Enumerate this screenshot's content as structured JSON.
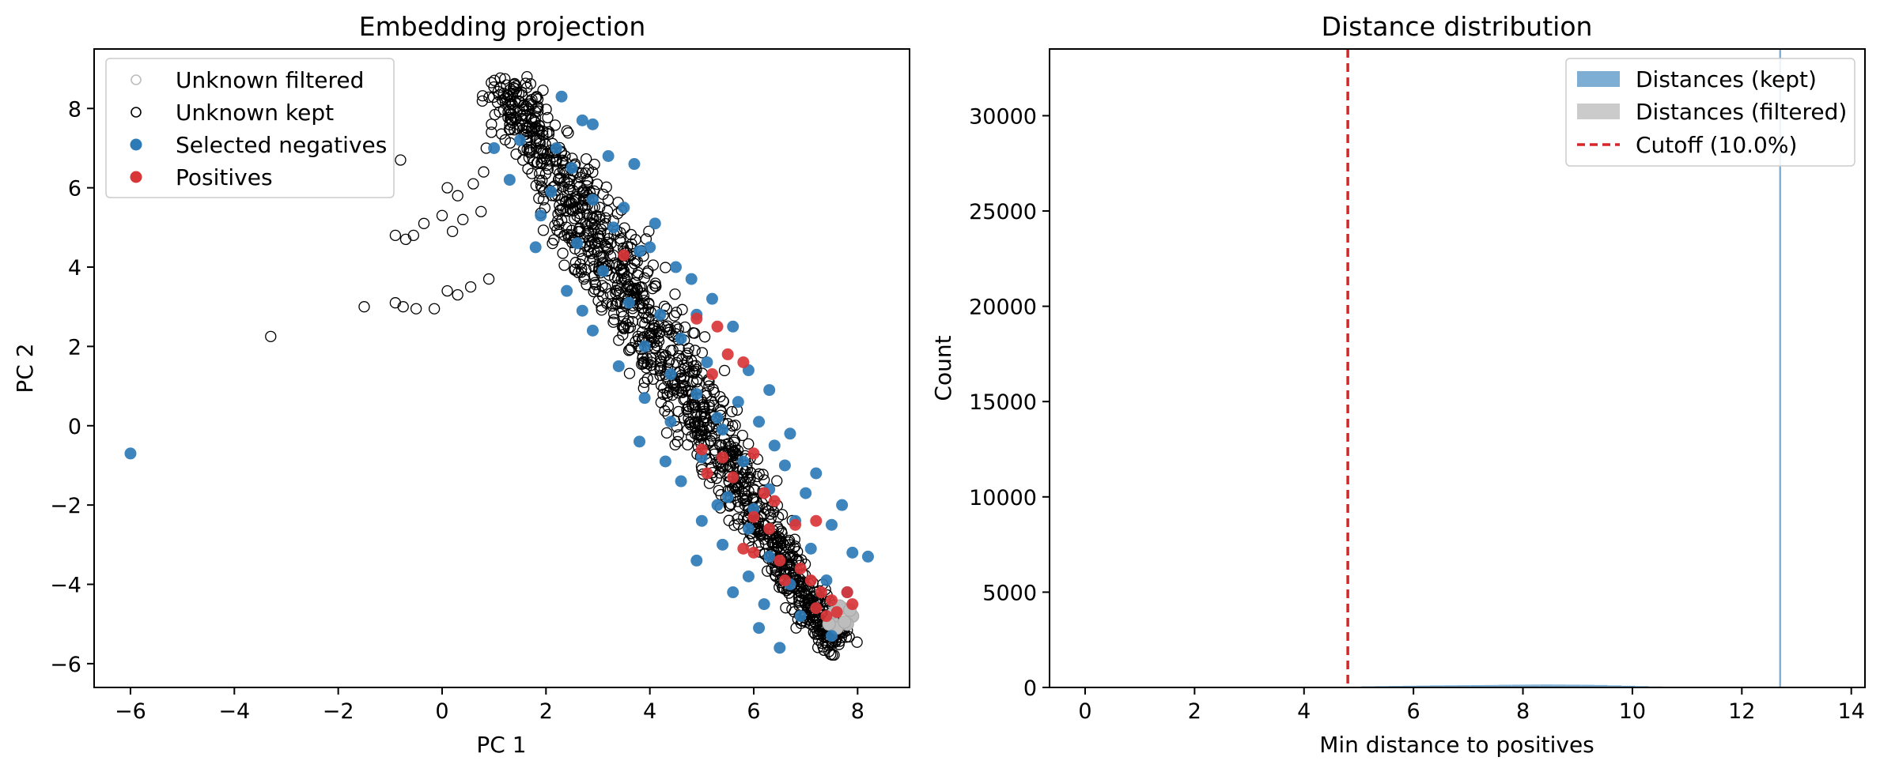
{
  "chart_data": [
    {
      "type": "scatter",
      "title": "Embedding projection",
      "xlabel": "PC 1",
      "ylabel": "PC 2",
      "xlim": [
        -6.7,
        9.0
      ],
      "ylim": [
        -6.6,
        9.5
      ],
      "x_ticks": [
        -6,
        -4,
        -2,
        0,
        2,
        4,
        6,
        8
      ],
      "y_ticks": [
        -6,
        -4,
        -2,
        0,
        2,
        4,
        6,
        8
      ],
      "x_tick_labels": [
        "−6",
        "−4",
        "−2",
        "0",
        "2",
        "4",
        "6",
        "8"
      ],
      "y_tick_labels": [
        "−6",
        "−4",
        "−2",
        "0",
        "2",
        "4",
        "6",
        "8"
      ],
      "legend_position": "top-left",
      "grid": false,
      "colors": {
        "unknown_filtered": "#bdbdbd",
        "unknown_kept": "#000000",
        "selected_negatives": "#1f77b4",
        "positives": "#d62728"
      },
      "series": [
        {
          "name": "Unknown filtered",
          "marker": "hollow-circle",
          "cluster_region": {
            "x_range": [
              7.4,
              8.0
            ],
            "y_range": [
              -5.2,
              -4.4
            ]
          },
          "points": [
            [
              7.5,
              -4.9
            ],
            [
              7.7,
              -4.6
            ],
            [
              7.9,
              -4.8
            ],
            [
              7.6,
              -5.1
            ],
            [
              7.8,
              -5.0
            ],
            [
              7.55,
              -4.7
            ],
            [
              7.75,
              -4.95
            ],
            [
              7.65,
              -4.55
            ],
            [
              7.85,
              -4.65
            ],
            [
              7.45,
              -5.0
            ]
          ]
        },
        {
          "name": "Unknown kept",
          "marker": "hollow-circle",
          "outliers": [
            [
              -3.3,
              2.25
            ],
            [
              -1.5,
              3.0
            ],
            [
              -0.9,
              3.1
            ],
            [
              -0.75,
              3.0
            ],
            [
              -0.5,
              2.95
            ],
            [
              -0.15,
              2.95
            ],
            [
              0.1,
              3.4
            ],
            [
              0.3,
              3.3
            ],
            [
              0.55,
              3.5
            ],
            [
              0.9,
              3.7
            ],
            [
              -0.9,
              4.8
            ],
            [
              -0.7,
              4.7
            ],
            [
              -0.55,
              4.8
            ],
            [
              -0.35,
              5.1
            ],
            [
              0.0,
              5.3
            ],
            [
              0.2,
              4.9
            ],
            [
              0.4,
              5.2
            ],
            [
              0.75,
              5.4
            ],
            [
              -0.8,
              6.7
            ],
            [
              0.1,
              6.0
            ],
            [
              0.3,
              5.8
            ],
            [
              0.6,
              6.1
            ],
            [
              0.8,
              6.4
            ],
            [
              0.95,
              7.4
            ],
            [
              0.85,
              7.0
            ]
          ],
          "cluster_band": {
            "from": [
              1.2,
              8.6
            ],
            "to": [
              7.6,
              -5.6
            ],
            "half_width_pc1": 1.05
          },
          "cluster_count": 1300
        },
        {
          "name": "Selected negatives",
          "marker": "filled-circle",
          "outliers": [
            [
              -6.0,
              -0.7
            ]
          ],
          "points": [
            [
              2.3,
              8.3
            ],
            [
              2.9,
              7.6
            ],
            [
              1.5,
              7.2
            ],
            [
              3.2,
              6.8
            ],
            [
              2.5,
              6.5
            ],
            [
              2.1,
              5.9
            ],
            [
              3.7,
              6.6
            ],
            [
              2.9,
              5.7
            ],
            [
              1.9,
              5.3
            ],
            [
              3.3,
              5.0
            ],
            [
              2.6,
              4.6
            ],
            [
              4.1,
              5.1
            ],
            [
              3.8,
              4.4
            ],
            [
              3.1,
              3.9
            ],
            [
              4.5,
              4.0
            ],
            [
              2.4,
              3.4
            ],
            [
              4.8,
              3.7
            ],
            [
              3.6,
              3.1
            ],
            [
              4.2,
              2.8
            ],
            [
              5.2,
              3.2
            ],
            [
              2.9,
              2.4
            ],
            [
              3.9,
              2.0
            ],
            [
              4.6,
              2.2
            ],
            [
              5.6,
              2.5
            ],
            [
              3.4,
              1.5
            ],
            [
              4.4,
              1.3
            ],
            [
              5.1,
              1.6
            ],
            [
              5.9,
              1.4
            ],
            [
              3.9,
              0.7
            ],
            [
              4.9,
              0.8
            ],
            [
              5.7,
              0.6
            ],
            [
              6.3,
              0.9
            ],
            [
              4.4,
              0.1
            ],
            [
              5.4,
              -0.1
            ],
            [
              6.1,
              0.1
            ],
            [
              6.7,
              -0.2
            ],
            [
              3.8,
              -0.4
            ],
            [
              5.0,
              -0.8
            ],
            [
              5.8,
              -0.9
            ],
            [
              6.6,
              -1.0
            ],
            [
              4.6,
              -1.4
            ],
            [
              5.5,
              -1.8
            ],
            [
              6.3,
              -1.6
            ],
            [
              7.0,
              -1.7
            ],
            [
              5.0,
              -2.4
            ],
            [
              5.9,
              -2.6
            ],
            [
              6.8,
              -2.4
            ],
            [
              7.5,
              -2.5
            ],
            [
              5.4,
              -3.0
            ],
            [
              6.3,
              -3.3
            ],
            [
              7.1,
              -3.1
            ],
            [
              7.9,
              -3.2
            ],
            [
              5.9,
              -3.8
            ],
            [
              6.7,
              -4.0
            ],
            [
              7.4,
              -3.9
            ],
            [
              8.2,
              -3.3
            ],
            [
              6.2,
              -4.5
            ],
            [
              6.9,
              -4.8
            ],
            [
              7.5,
              -5.3
            ],
            [
              6.5,
              -5.6
            ],
            [
              6.1,
              -5.1
            ],
            [
              7.8,
              -4.2
            ],
            [
              5.6,
              -4.2
            ],
            [
              4.9,
              -3.4
            ],
            [
              5.3,
              -2.0
            ],
            [
              2.7,
              2.9
            ],
            [
              1.8,
              4.5
            ],
            [
              1.3,
              6.2
            ],
            [
              1.0,
              7.0
            ],
            [
              2.2,
              7.0
            ],
            [
              2.7,
              7.7
            ],
            [
              3.5,
              5.5
            ],
            [
              4.0,
              4.5
            ],
            [
              4.9,
              2.8
            ],
            [
              5.3,
              0.2
            ],
            [
              6.4,
              -0.5
            ],
            [
              7.2,
              -1.2
            ],
            [
              7.7,
              -2.0
            ],
            [
              6.0,
              -2.1
            ],
            [
              4.3,
              -0.9
            ]
          ]
        },
        {
          "name": "Positives",
          "marker": "filled-circle",
          "points": [
            [
              3.5,
              4.3
            ],
            [
              4.9,
              2.7
            ],
            [
              5.3,
              2.5
            ],
            [
              5.5,
              1.8
            ],
            [
              5.8,
              1.6
            ],
            [
              5.2,
              1.3
            ],
            [
              5.0,
              -0.6
            ],
            [
              5.4,
              -0.8
            ],
            [
              5.1,
              -1.2
            ],
            [
              5.6,
              -1.3
            ],
            [
              6.0,
              -0.7
            ],
            [
              6.2,
              -1.7
            ],
            [
              6.4,
              -1.9
            ],
            [
              6.0,
              -2.3
            ],
            [
              6.3,
              -2.6
            ],
            [
              6.8,
              -2.5
            ],
            [
              7.2,
              -2.4
            ],
            [
              6.0,
              -3.2
            ],
            [
              6.5,
              -3.4
            ],
            [
              6.9,
              -3.6
            ],
            [
              7.1,
              -3.9
            ],
            [
              7.3,
              -4.2
            ],
            [
              7.5,
              -4.4
            ],
            [
              7.2,
              -4.6
            ],
            [
              7.8,
              -4.2
            ],
            [
              7.9,
              -4.5
            ],
            [
              7.4,
              -4.8
            ],
            [
              7.6,
              -4.7
            ],
            [
              6.6,
              -3.9
            ],
            [
              5.8,
              -3.1
            ]
          ]
        }
      ]
    },
    {
      "type": "bar",
      "title": "Distance distribution",
      "xlabel": "Min distance to positives",
      "ylabel": "Count",
      "xlim": [
        -0.65,
        14.25
      ],
      "ylim": [
        0,
        33500
      ],
      "x_ticks": [
        0,
        2,
        4,
        6,
        8,
        10,
        12,
        14
      ],
      "y_ticks": [
        0,
        5000,
        10000,
        15000,
        20000,
        25000,
        30000
      ],
      "x_tick_labels": [
        "0",
        "2",
        "4",
        "6",
        "8",
        "10",
        "12",
        "14"
      ],
      "y_tick_labels": [
        "0",
        "5000",
        "10000",
        "15000",
        "20000",
        "25000",
        "30000"
      ],
      "legend_position": "top-right",
      "grid": false,
      "colors": {
        "kept": "#1f77b4",
        "filtered": "#7f7f7f",
        "cutoff": "#d62728"
      },
      "series": [
        {
          "name": "Distances (kept)",
          "bin_width": 0.25,
          "bins": [
            [
              4.8,
              40
            ],
            [
              5.05,
              60
            ],
            [
              5.3,
              70
            ],
            [
              5.55,
              80
            ],
            [
              5.8,
              90
            ],
            [
              6.05,
              100
            ],
            [
              6.3,
              110
            ],
            [
              6.55,
              115
            ],
            [
              6.8,
              120
            ],
            [
              7.05,
              125
            ],
            [
              7.3,
              130
            ],
            [
              7.55,
              140
            ],
            [
              7.8,
              145
            ],
            [
              8.05,
              150
            ],
            [
              8.3,
              155
            ],
            [
              8.55,
              150
            ],
            [
              8.8,
              145
            ],
            [
              9.05,
              140
            ],
            [
              9.3,
              130
            ],
            [
              9.55,
              110
            ],
            [
              9.8,
              90
            ],
            [
              10.05,
              70
            ],
            [
              10.3,
              50
            ],
            [
              10.55,
              35
            ],
            [
              10.8,
              25
            ],
            [
              11.05,
              15
            ]
          ],
          "spike": {
            "x": 12.7,
            "count": 33500
          }
        },
        {
          "name": "Distances (filtered)",
          "bins": []
        }
      ],
      "cutoff": {
        "name": "Cutoff (10.0%)",
        "x": 4.8
      }
    }
  ]
}
